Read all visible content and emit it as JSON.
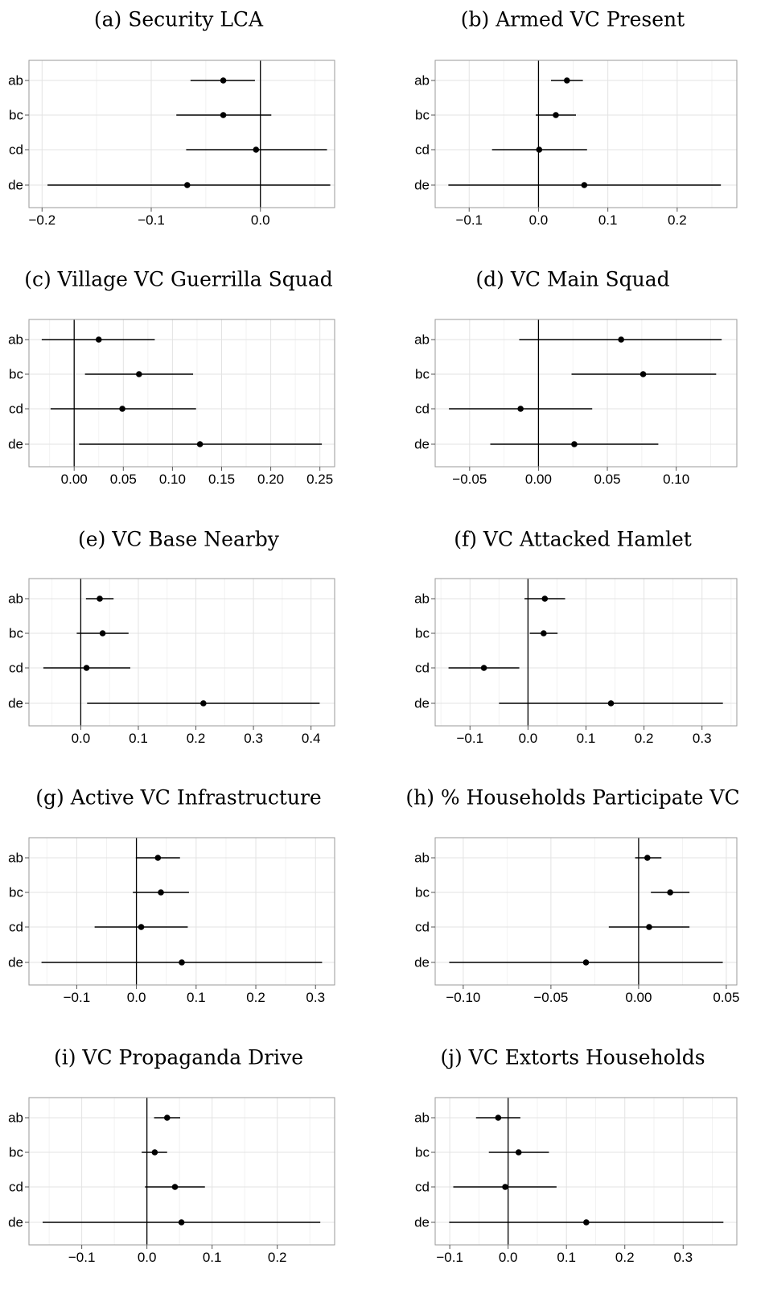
{
  "chart_data": [
    {
      "type": "scatter",
      "title": "(a) Security LCA",
      "categories": [
        "ab",
        "bc",
        "cd",
        "de"
      ],
      "estimates": [
        -0.034,
        -0.034,
        -0.004,
        -0.067
      ],
      "ci_low": [
        -0.064,
        -0.077,
        -0.068,
        -0.195
      ],
      "ci_high": [
        -0.005,
        0.01,
        0.061,
        0.064
      ],
      "xlim": [
        -0.212,
        0.068
      ],
      "xticks": [
        -0.2,
        -0.1,
        0.0
      ],
      "xtick_labels": [
        "-0.2",
        "-0.1",
        "0.0"
      ],
      "reference_line": 0,
      "grid": true
    },
    {
      "type": "scatter",
      "title": "(b) Armed VC Present",
      "categories": [
        "ab",
        "bc",
        "cd",
        "de"
      ],
      "estimates": [
        0.041,
        0.025,
        0.001,
        0.066
      ],
      "ci_low": [
        0.018,
        -0.004,
        -0.067,
        -0.13
      ],
      "ci_high": [
        0.064,
        0.054,
        0.07,
        0.263
      ],
      "xlim": [
        -0.149,
        0.286
      ],
      "xticks": [
        -0.1,
        0.0,
        0.1,
        0.2
      ],
      "xtick_labels": [
        "-0.1",
        "0.0",
        "0.1",
        "0.2"
      ],
      "reference_line": 0,
      "grid": true
    },
    {
      "type": "scatter",
      "title": "(c) Village VC Guerrilla Squad",
      "categories": [
        "ab",
        "bc",
        "cd",
        "de"
      ],
      "estimates": [
        0.025,
        0.066,
        0.049,
        0.128
      ],
      "ci_low": [
        -0.033,
        0.011,
        -0.024,
        0.005
      ],
      "ci_high": [
        0.082,
        0.121,
        0.124,
        0.252
      ],
      "xlim": [
        -0.046,
        0.265
      ],
      "xticks": [
        0.0,
        0.05,
        0.1,
        0.15,
        0.2,
        0.25
      ],
      "xtick_labels": [
        "0.00",
        "0.05",
        "0.10",
        "0.15",
        "0.20",
        "0.25"
      ],
      "reference_line": 0,
      "grid": true
    },
    {
      "type": "scatter",
      "title": "(d) VC Main Squad",
      "categories": [
        "ab",
        "bc",
        "cd",
        "de"
      ],
      "estimates": [
        0.06,
        0.076,
        -0.013,
        0.026
      ],
      "ci_low": [
        -0.014,
        0.024,
        -0.065,
        -0.035
      ],
      "ci_high": [
        0.133,
        0.129,
        0.039,
        0.087
      ],
      "xlim": [
        -0.075,
        0.144
      ],
      "xticks": [
        -0.05,
        0.0,
        0.05,
        0.1
      ],
      "xtick_labels": [
        "-0.05",
        "0.00",
        "0.05",
        "0.10"
      ],
      "reference_line": 0,
      "grid": true
    },
    {
      "type": "scatter",
      "title": "(e) VC Base Nearby",
      "categories": [
        "ab",
        "bc",
        "cd",
        "de"
      ],
      "estimates": [
        0.033,
        0.038,
        0.01,
        0.213
      ],
      "ci_low": [
        0.009,
        -0.007,
        -0.065,
        0.011
      ],
      "ci_high": [
        0.057,
        0.083,
        0.086,
        0.415
      ],
      "xlim": [
        -0.09,
        0.441
      ],
      "xticks": [
        0.0,
        0.1,
        0.2,
        0.3,
        0.4
      ],
      "xtick_labels": [
        "0.0",
        "0.1",
        "0.2",
        "0.3",
        "0.4"
      ],
      "reference_line": 0,
      "grid": true
    },
    {
      "type": "scatter",
      "title": "(f) VC Attacked Hamlet",
      "categories": [
        "ab",
        "bc",
        "cd",
        "de"
      ],
      "estimates": [
        0.029,
        0.027,
        -0.076,
        0.143
      ],
      "ci_low": [
        -0.006,
        0.003,
        -0.137,
        -0.05
      ],
      "ci_high": [
        0.064,
        0.051,
        -0.015,
        0.336
      ],
      "xlim": [
        -0.16,
        0.36
      ],
      "xticks": [
        -0.1,
        0.0,
        0.1,
        0.2,
        0.3
      ],
      "xtick_labels": [
        "-0.1",
        "0.0",
        "0.1",
        "0.2",
        "0.3"
      ],
      "reference_line": 0,
      "grid": true
    },
    {
      "type": "scatter",
      "title": "(g) Active VC Infrastructure",
      "categories": [
        "ab",
        "bc",
        "cd",
        "de"
      ],
      "estimates": [
        0.036,
        0.041,
        0.008,
        0.076
      ],
      "ci_low": [
        -0.001,
        -0.006,
        -0.07,
        -0.159
      ],
      "ci_high": [
        0.073,
        0.088,
        0.086,
        0.311
      ],
      "xlim": [
        -0.18,
        0.332
      ],
      "xticks": [
        -0.1,
        0.0,
        0.1,
        0.2,
        0.3
      ],
      "xtick_labels": [
        "-0.1",
        "0.0",
        "0.1",
        "0.2",
        "0.3"
      ],
      "reference_line": 0,
      "grid": true
    },
    {
      "type": "scatter",
      "title": "(h) % Households Participate VC",
      "categories": [
        "ab",
        "bc",
        "cd",
        "de"
      ],
      "estimates": [
        0.005,
        0.018,
        0.006,
        -0.03
      ],
      "ci_low": [
        -0.002,
        0.007,
        -0.017,
        -0.108
      ],
      "ci_high": [
        0.013,
        0.029,
        0.029,
        0.048
      ],
      "xlim": [
        -0.116,
        0.056
      ],
      "xticks": [
        -0.1,
        -0.05,
        0.0,
        0.05
      ],
      "xtick_labels": [
        "-0.10",
        "-0.05",
        "0.00",
        "0.05"
      ],
      "reference_line": 0,
      "grid": true
    },
    {
      "type": "scatter",
      "title": "(i) VC Propaganda Drive",
      "categories": [
        "ab",
        "bc",
        "cd",
        "de"
      ],
      "estimates": [
        0.031,
        0.012,
        0.043,
        0.053
      ],
      "ci_low": [
        0.011,
        -0.008,
        -0.003,
        -0.16
      ],
      "ci_high": [
        0.051,
        0.031,
        0.089,
        0.266
      ],
      "xlim": [
        -0.181,
        0.288
      ],
      "xticks": [
        -0.1,
        0.0,
        0.1,
        0.2
      ],
      "xtick_labels": [
        "-0.1",
        "0.0",
        "0.1",
        "0.2"
      ],
      "reference_line": 0,
      "grid": true
    },
    {
      "type": "scatter",
      "title": "(j) VC Extorts Households",
      "categories": [
        "ab",
        "bc",
        "cd",
        "de"
      ],
      "estimates": [
        -0.017,
        0.018,
        -0.005,
        0.134
      ],
      "ci_low": [
        -0.055,
        -0.033,
        -0.094,
        -0.101
      ],
      "ci_high": [
        0.021,
        0.07,
        0.083,
        0.369
      ],
      "xlim": [
        -0.125,
        0.392
      ],
      "xticks": [
        -0.1,
        0.0,
        0.1,
        0.2,
        0.3
      ],
      "xtick_labels": [
        "-0.1",
        "0.0",
        "0.1",
        "0.2",
        "0.3"
      ],
      "reference_line": 0,
      "grid": true
    }
  ]
}
